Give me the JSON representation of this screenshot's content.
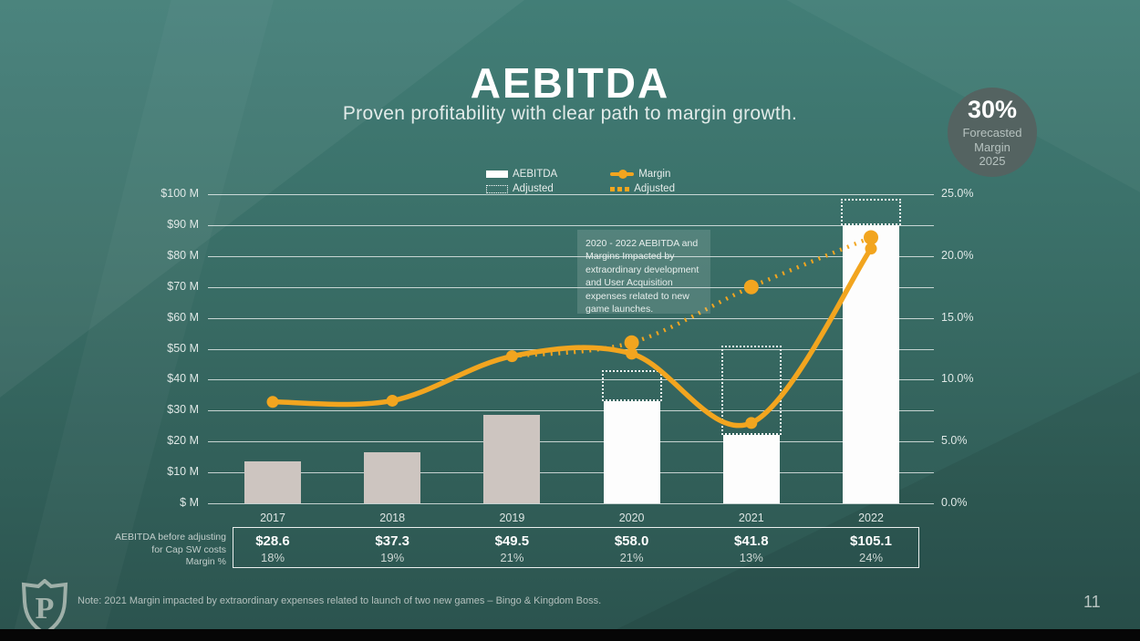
{
  "slide": {
    "title": "AEBITDA",
    "subtitle": "Proven profitability with clear path to margin growth.",
    "page_number": "11",
    "note": "Note: 2021 Margin impacted by extraordinary expenses related to launch of two new games – Bingo & Kingdom Boss.",
    "logo_letter": "P"
  },
  "badge": {
    "value": "30%",
    "label_lines": [
      "Forecasted",
      "Margin",
      "2025"
    ]
  },
  "legend": {
    "aebitda": "AEBITDA",
    "aebitda_adjusted": "Adjusted",
    "margin": "Margin",
    "margin_adjusted": "Adjusted"
  },
  "annotation": "2020 - 2022 AEBITDA and Margins Impacted by extraordinary development and User Acquisition expenses related to new game launches.",
  "footer_table": {
    "row_label_lines": [
      "AEBITDA before adjusting",
      "for Cap SW costs",
      "Margin %"
    ],
    "columns": [
      {
        "value": "$28.6",
        "margin": "18%"
      },
      {
        "value": "$37.3",
        "margin": "19%"
      },
      {
        "value": "$49.5",
        "margin": "21%"
      },
      {
        "value": "$58.0",
        "margin": "21%"
      },
      {
        "value": "$41.8",
        "margin": "13%"
      },
      {
        "value": "$105.1",
        "margin": "24%"
      }
    ]
  },
  "chart_data": {
    "type": "combo bar+line",
    "title": "AEBITDA",
    "categories": [
      "2017",
      "2018",
      "2019",
      "2020",
      "2021",
      "2022"
    ],
    "series": [
      {
        "name": "AEBITDA",
        "type": "bar",
        "unit": "$M",
        "axis": "left",
        "values": [
          13.5,
          16.5,
          28.5,
          33,
          22,
          90
        ]
      },
      {
        "name": "Adjusted AEBITDA",
        "type": "bar-dotted-outline",
        "unit": "$M",
        "axis": "left",
        "values": [
          null,
          null,
          null,
          43,
          51,
          98.5
        ]
      },
      {
        "name": "Margin",
        "type": "line",
        "unit": "%",
        "axis": "right",
        "values": [
          8.2,
          8.3,
          11.9,
          12.1,
          6.5,
          20.6
        ]
      },
      {
        "name": "Adjusted Margin",
        "type": "line-dotted",
        "unit": "%",
        "axis": "right",
        "values": [
          null,
          null,
          11.9,
          13.0,
          17.5,
          21.5
        ]
      }
    ],
    "left_axis": {
      "ticks": [
        "$100 M",
        "$90 M",
        "$80 M",
        "$70 M",
        "$60 M",
        "$50 M",
        "$40 M",
        "$30 M",
        "$20 M",
        "$10 M",
        "$ M"
      ],
      "range": [
        0,
        100
      ],
      "gridlines": true
    },
    "right_axis": {
      "ticks": [
        "25.0%",
        "20.0%",
        "15.0%",
        "10.0%",
        "5.0%",
        "0.0%"
      ],
      "range": [
        0,
        25
      ]
    },
    "legend_position": "top",
    "colors": {
      "bar_gray": "#cdc5c0",
      "bar_white": "#fdfdfd",
      "line_orange": "#f2a51f",
      "background_teal": "#386b64",
      "badge_circle": "#546361"
    }
  }
}
